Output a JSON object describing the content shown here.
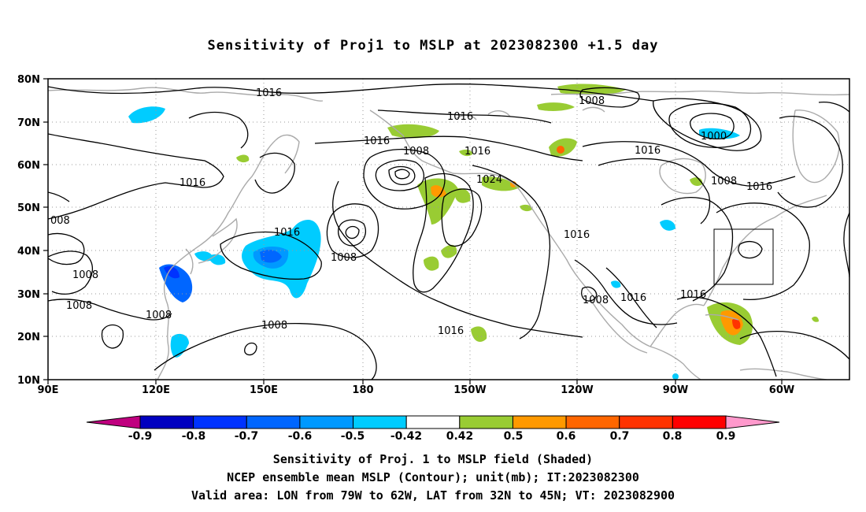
{
  "title": "Sensitivity of Proj1 to MSLP at 2023082300 +1.5 day",
  "map": {
    "lon_range": [
      "90E",
      "30W"
    ],
    "lat_range": [
      "10N",
      "80N"
    ],
    "x_ticks": [
      "90E",
      "120E",
      "150E",
      "180",
      "150W",
      "120W",
      "90W",
      "60W"
    ],
    "y_ticks": [
      "80N",
      "70N",
      "60N",
      "50N",
      "40N",
      "30N",
      "20N",
      "10N"
    ],
    "grid": true,
    "contour_labels": [
      {
        "text": "1016"
      },
      {
        "text": "1016"
      },
      {
        "text": "1016"
      },
      {
        "text": "1016"
      },
      {
        "text": "1016"
      },
      {
        "text": "1016"
      },
      {
        "text": "1016"
      },
      {
        "text": "1016"
      },
      {
        "text": "1016"
      },
      {
        "text": "1016"
      },
      {
        "text": "1016"
      },
      {
        "text": "1016"
      },
      {
        "text": "1024"
      },
      {
        "text": "1008"
      },
      {
        "text": "1008"
      },
      {
        "text": "1008"
      },
      {
        "text": "1008"
      },
      {
        "text": "1008"
      },
      {
        "text": "1008"
      },
      {
        "text": "1008"
      },
      {
        "text": "1008"
      },
      {
        "text": "1008"
      },
      {
        "text": "008"
      },
      {
        "text": "1000"
      }
    ],
    "valid_box": {
      "lon": [
        "79W",
        "62W"
      ],
      "lat": [
        "32N",
        "45N"
      ]
    }
  },
  "colorbar": {
    "labels": [
      "-0.9",
      "-0.8",
      "-0.7",
      "-0.6",
      "-0.5",
      "-0.42",
      "0.42",
      "0.5",
      "0.6",
      "0.7",
      "0.8",
      "0.9"
    ],
    "colors": [
      "#0000c0",
      "#0033ff",
      "#0066ff",
      "#0099ff",
      "#00ccff",
      "#ffffff",
      "#99cc33",
      "#ff9900",
      "#ff6600",
      "#ff3300",
      "#ff0000"
    ],
    "low_color": "#c0007f",
    "high_color": "#ff99cc"
  },
  "captions": {
    "line1": "Sensitivity of Proj. 1 to MSLP field (Shaded)",
    "line2": "NCEP ensemble mean MSLP (Contour); unit(mb); IT:2023082300",
    "line3": "Valid area: LON from 79W to 62W, LAT from 32N to 45N; VT: 2023082900"
  }
}
